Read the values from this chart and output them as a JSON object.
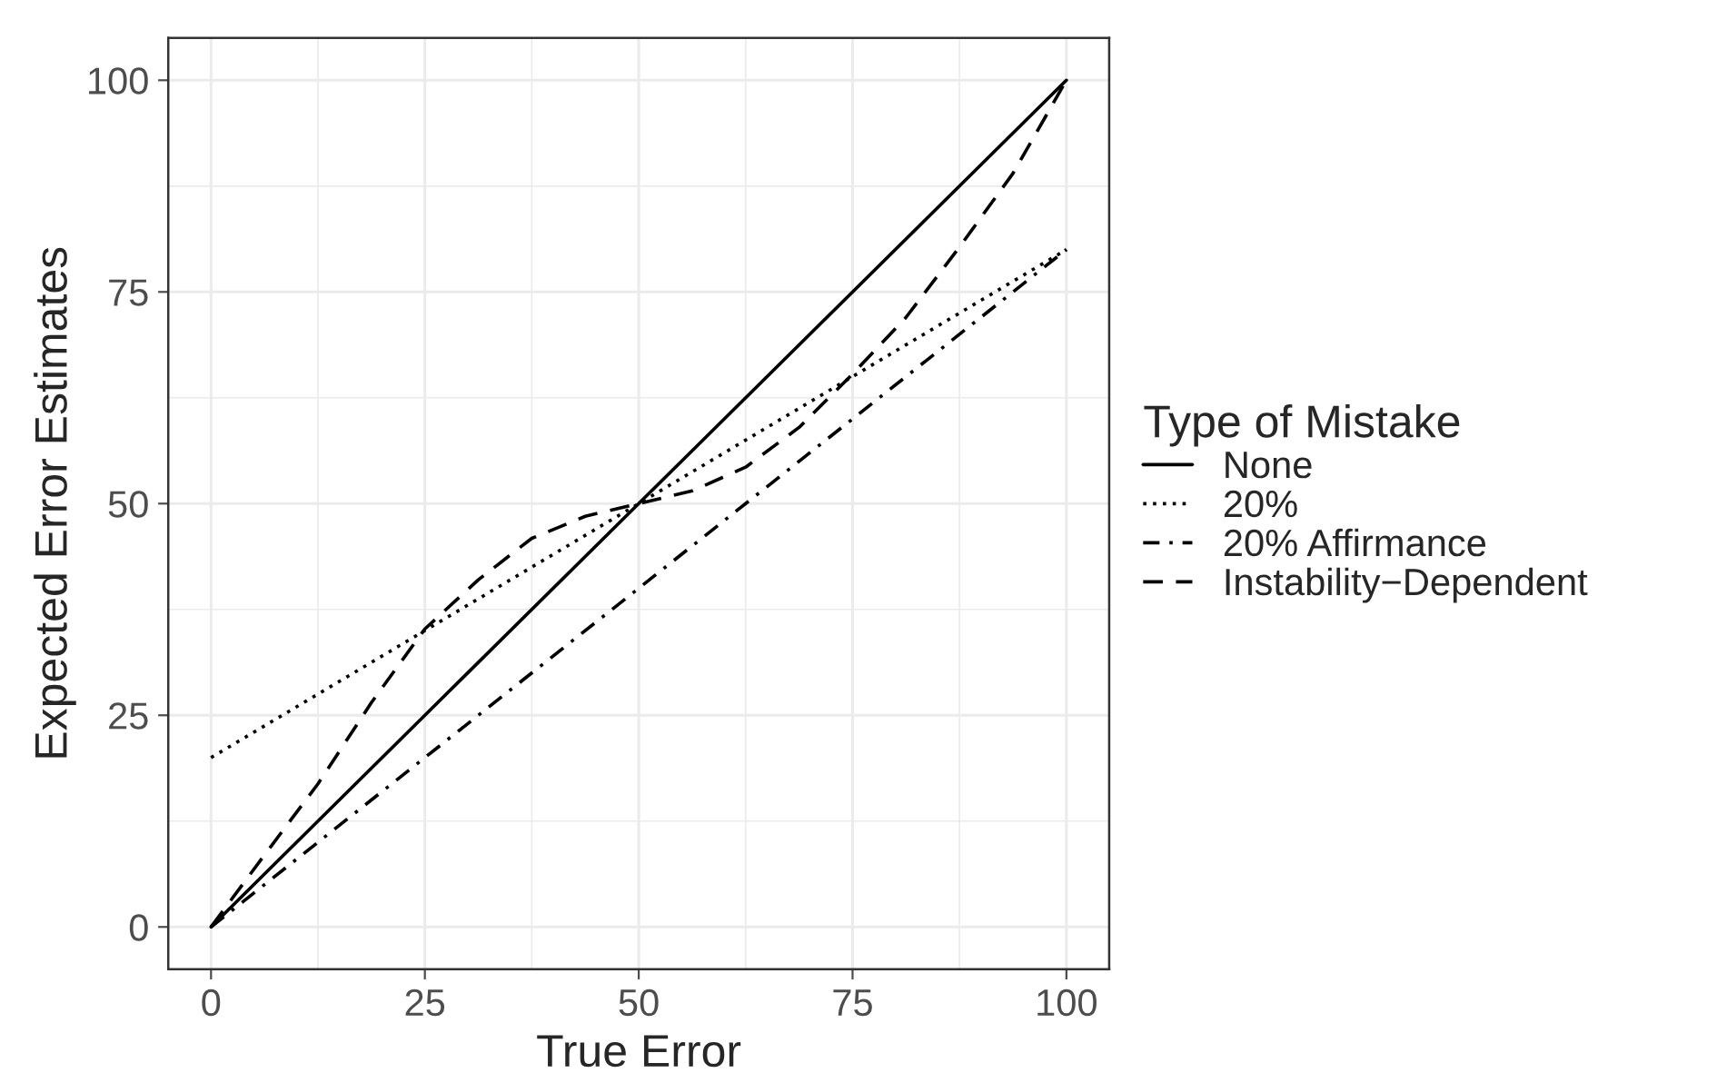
{
  "chart_data": {
    "type": "line",
    "xlabel": "True Error",
    "ylabel": "Expected Error Estimates",
    "legend_title": "Type of Mistake",
    "xlim": [
      -5,
      105
    ],
    "ylim": [
      -5,
      105
    ],
    "xticks": [
      0,
      25,
      50,
      75,
      100
    ],
    "yticks": [
      0,
      25,
      50,
      75,
      100
    ],
    "grid": true,
    "legend": "right",
    "color": "#000000",
    "series": [
      {
        "name": "None",
        "line_style": "solid",
        "x": [
          0,
          50,
          100
        ],
        "values": [
          0,
          50,
          100
        ]
      },
      {
        "name": "20%",
        "line_style": "dotted",
        "x": [
          0,
          50,
          100
        ],
        "values": [
          20,
          50,
          80
        ]
      },
      {
        "name": "20% Affirmance",
        "line_style": "dashdot",
        "x": [
          0,
          25,
          50,
          75,
          100
        ],
        "values": [
          0,
          20,
          40,
          60,
          80
        ]
      },
      {
        "name": "Instability−Dependent",
        "line_style": "dashed",
        "x": [
          0,
          6.25,
          12.5,
          18.75,
          25,
          31.25,
          37.5,
          43.75,
          50,
          56.25,
          62.5,
          68.75,
          75,
          81.25,
          87.5,
          93.75,
          100
        ],
        "values": [
          0,
          8.5,
          16.9,
          26.5,
          35.2,
          41,
          45.9,
          48.5,
          50,
          51.5,
          54.3,
          59,
          65.3,
          72,
          80.3,
          89,
          100
        ]
      }
    ]
  }
}
